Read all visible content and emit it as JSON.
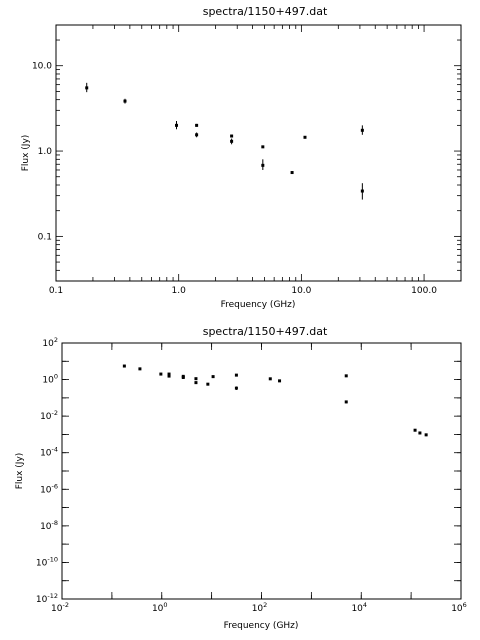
{
  "chart_data": [
    {
      "type": "scatter",
      "title": "spectra/1150+497.dat",
      "xlabel": "Frequency (GHz)",
      "ylabel": "Flux (Jy)",
      "xscale": "log",
      "yscale": "log",
      "xlim": [
        0.1,
        200
      ],
      "ylim": [
        0.03,
        30
      ],
      "grid": false,
      "xticks": [
        {
          "value": 0.1,
          "label": "0.1"
        },
        {
          "value": 1,
          "label": "1.0"
        },
        {
          "value": 10,
          "label": "10.0"
        },
        {
          "value": 100,
          "label": "100.0"
        }
      ],
      "yticks": [
        {
          "value": 0.1,
          "label": "0.1"
        },
        {
          "value": 1,
          "label": "1.0"
        },
        {
          "value": 10,
          "label": "10.0"
        }
      ],
      "points": [
        {
          "x": 0.178,
          "y": 5.5,
          "ylo": 4.9,
          "yhi": 6.3
        },
        {
          "x": 0.365,
          "y": 3.85,
          "ylo": 3.6,
          "yhi": 4.1
        },
        {
          "x": 0.96,
          "y": 2.0,
          "ylo": 1.8,
          "yhi": 2.25
        },
        {
          "x": 1.4,
          "y": 2.0,
          "ylo": 1.93,
          "yhi": 2.08
        },
        {
          "x": 1.4,
          "y": 1.55,
          "ylo": 1.45,
          "yhi": 1.65
        },
        {
          "x": 2.7,
          "y": 1.5,
          "ylo": 1.45,
          "yhi": 1.55
        },
        {
          "x": 2.7,
          "y": 1.3,
          "ylo": 1.2,
          "yhi": 1.4
        },
        {
          "x": 4.85,
          "y": 1.12,
          "ylo": 1.09,
          "yhi": 1.15
        },
        {
          "x": 4.85,
          "y": 0.68,
          "ylo": 0.6,
          "yhi": 0.8
        },
        {
          "x": 8.4,
          "y": 0.56,
          "ylo": 0.55,
          "yhi": 0.57
        },
        {
          "x": 10.7,
          "y": 1.45,
          "ylo": 1.4,
          "yhi": 1.5
        },
        {
          "x": 31.4,
          "y": 1.75,
          "ylo": 1.55,
          "yhi": 2.0
        },
        {
          "x": 31.4,
          "y": 0.34,
          "ylo": 0.27,
          "yhi": 0.42
        }
      ]
    },
    {
      "type": "scatter",
      "title": "spectra/1150+497.dat",
      "xlabel": "Frequency (GHz)",
      "ylabel": "Flux (Jy)",
      "xscale": "log",
      "yscale": "log",
      "xlim": [
        0.01,
        1000000
      ],
      "ylim": [
        1e-12,
        100
      ],
      "grid": false,
      "xticks": [
        {
          "value": 0.01,
          "base": "10",
          "exp": "-2"
        },
        {
          "value": 1,
          "base": "10",
          "exp": "0"
        },
        {
          "value": 100,
          "base": "10",
          "exp": "2"
        },
        {
          "value": 10000,
          "base": "10",
          "exp": "4"
        },
        {
          "value": 1000000,
          "base": "10",
          "exp": "6"
        }
      ],
      "yticks": [
        {
          "value": 1e-12,
          "base": "10",
          "exp": "-12"
        },
        {
          "value": 1e-10,
          "base": "10",
          "exp": "-10"
        },
        {
          "value": 1e-08,
          "base": "10",
          "exp": "-8"
        },
        {
          "value": 1e-06,
          "base": "10",
          "exp": "-6"
        },
        {
          "value": 0.0001,
          "base": "10",
          "exp": "-4"
        },
        {
          "value": 0.01,
          "base": "10",
          "exp": "-2"
        },
        {
          "value": 1,
          "base": "10",
          "exp": "0"
        },
        {
          "value": 100,
          "base": "10",
          "exp": "2"
        }
      ],
      "points": [
        {
          "x": 0.178,
          "y": 5.5,
          "ylo": 4.9,
          "yhi": 6.3
        },
        {
          "x": 0.365,
          "y": 3.85,
          "ylo": 3.6,
          "yhi": 4.1
        },
        {
          "x": 0.96,
          "y": 2.0,
          "ylo": 1.8,
          "yhi": 2.25
        },
        {
          "x": 1.4,
          "y": 2.0,
          "ylo": 1.93,
          "yhi": 2.08
        },
        {
          "x": 1.4,
          "y": 1.55,
          "ylo": 1.45,
          "yhi": 1.65
        },
        {
          "x": 2.7,
          "y": 1.5,
          "ylo": 1.45,
          "yhi": 1.55
        },
        {
          "x": 2.7,
          "y": 1.3,
          "ylo": 1.2,
          "yhi": 1.4
        },
        {
          "x": 4.85,
          "y": 1.12,
          "ylo": 1.09,
          "yhi": 1.15
        },
        {
          "x": 4.85,
          "y": 0.68,
          "ylo": 0.6,
          "yhi": 0.8
        },
        {
          "x": 8.4,
          "y": 0.56,
          "ylo": 0.55,
          "yhi": 0.57
        },
        {
          "x": 10.7,
          "y": 1.45,
          "ylo": 1.4,
          "yhi": 1.5
        },
        {
          "x": 31.4,
          "y": 1.75,
          "ylo": 1.55,
          "yhi": 2.0
        },
        {
          "x": 31.4,
          "y": 0.34,
          "ylo": 0.27,
          "yhi": 0.42
        },
        {
          "x": 150,
          "y": 1.1,
          "ylo": 1.0,
          "yhi": 1.2
        },
        {
          "x": 230,
          "y": 0.85,
          "ylo": 0.78,
          "yhi": 0.92
        },
        {
          "x": 5000,
          "y": 1.6,
          "ylo": 1.45,
          "yhi": 1.75
        },
        {
          "x": 5000,
          "y": 0.06,
          "ylo": 0.05,
          "yhi": 0.07
        },
        {
          "x": 120000,
          "y": 0.0017,
          "ylo": 0.0015,
          "yhi": 0.0019
        },
        {
          "x": 150000,
          "y": 0.0012,
          "ylo": 0.001,
          "yhi": 0.0014
        },
        {
          "x": 200000,
          "y": 0.00095,
          "ylo": 0.0008,
          "yhi": 0.0011
        }
      ]
    }
  ]
}
